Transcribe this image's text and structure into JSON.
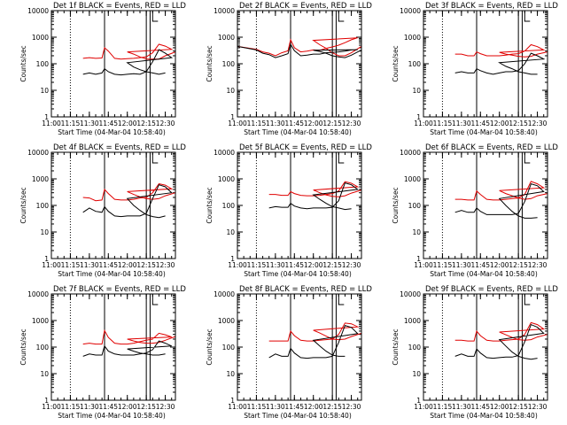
{
  "chart_data": {
    "type": "line",
    "y_scale": "log",
    "ylim": [
      1,
      10000
    ],
    "y_ticks": [
      1,
      10,
      100,
      1000,
      10000
    ],
    "y_tick_labels": [
      "1",
      "10",
      "100",
      "1000",
      "10000"
    ],
    "xlim": [
      "11:00",
      "12:38"
    ],
    "x_ticks": [
      "11:00",
      "11:15",
      "11:30",
      "11:45",
      "12:00",
      "12:15",
      "12:30"
    ],
    "ylabel": "Counts/sec",
    "xlabel": "Start Time (04-Mar-04 10:58:40)",
    "series_colors": {
      "Events": "#000000",
      "LLD": "#e00000"
    },
    "markers": {
      "dotted": "11:15",
      "solid": [
        "11:42",
        "12:15",
        "12:18"
      ],
      "flag": "12:20"
    },
    "x_sample_minutes": [
      11.0,
      11.15,
      11.2,
      11.25,
      11.3,
      11.35,
      11.4,
      11.42,
      11.45,
      11.5,
      11.55,
      11.6,
      11.65,
      11.7,
      11.75,
      11.8,
      11.85,
      11.9,
      11.95,
      12.0,
      12.05,
      12.1,
      12.15,
      12.2,
      12.25,
      12.3,
      12.38
    ],
    "panels": [
      {
        "title": "Det 1f  BLACK = Events, RED = LLD",
        "series": [
          {
            "name": "LLD",
            "values": [
              null,
              null,
              null,
              160,
              170,
              160,
              165,
              400,
              300,
              160,
              150,
              155,
              160,
              170,
              180,
              260,
              540,
              460,
              350,
              280,
              230,
              180,
              150,
              150,
              150,
              200,
              280
            ]
          },
          {
            "name": "Events",
            "values": [
              null,
              null,
              null,
              40,
              45,
              40,
              45,
              65,
              50,
              40,
              38,
              40,
              42,
              40,
              50,
              120,
              340,
              250,
              170,
              110,
              75,
              60,
              50,
              45,
              40,
              45,
              null
            ]
          }
        ]
      },
      {
        "title": "Det 2f  BLACK = Events, RED = LLD",
        "series": [
          {
            "name": "LLD",
            "values": [
              450,
              350,
              280,
              250,
              200,
              260,
              310,
              800,
              400,
              280,
              300,
              330,
              320,
              380,
              430,
              500,
              620,
              800,
              950,
              760,
              520,
              380,
              260,
              200,
              200,
              260,
              450
            ]
          },
          {
            "name": "Events",
            "values": [
              450,
              330,
              250,
              220,
              170,
              200,
              240,
              540,
              310,
              200,
              210,
              230,
              230,
              260,
              270,
              280,
              300,
              330,
              340,
              320,
              290,
              250,
              200,
              180,
              170,
              210,
              330
            ]
          }
        ]
      },
      {
        "title": "Det 3f  BLACK = Events, RED = LLD",
        "series": [
          {
            "name": "LLD",
            "values": [
              null,
              null,
              null,
              230,
              230,
              200,
              200,
              280,
              240,
              200,
              200,
              200,
              210,
              230,
              240,
              300,
              520,
              440,
              330,
              270,
              230,
              210,
              190,
              180,
              190,
              230,
              280
            ]
          },
          {
            "name": "Events",
            "values": [
              null,
              null,
              null,
              45,
              50,
              45,
              45,
              65,
              55,
              45,
              40,
              45,
              50,
              50,
              55,
              100,
              250,
              200,
              150,
              110,
              80,
              65,
              50,
              45,
              40,
              40,
              null
            ]
          }
        ]
      },
      {
        "title": "Det 4f  BLACK = Events, RED = LLD",
        "series": [
          {
            "name": "LLD",
            "values": [
              null,
              null,
              null,
              200,
              190,
              150,
              160,
              400,
              280,
              170,
              160,
              160,
              170,
              190,
              200,
              300,
              650,
              580,
              420,
              330,
              260,
              210,
              180,
              170,
              180,
              230,
              300
            ]
          },
          {
            "name": "Events",
            "values": [
              null,
              null,
              null,
              55,
              80,
              60,
              55,
              90,
              60,
              40,
              38,
              40,
              40,
              40,
              50,
              180,
              600,
              500,
              300,
              180,
              100,
              65,
              45,
              38,
              35,
              40,
              null
            ]
          }
        ]
      },
      {
        "title": "Det 5f  BLACK = Events, RED = LLD",
        "series": [
          {
            "name": "LLD",
            "values": [
              null,
              null,
              null,
              260,
              260,
              240,
              240,
              330,
              280,
              240,
              230,
              230,
              240,
              260,
              280,
              350,
              780,
              680,
              500,
              380,
              300,
              250,
              220,
              210,
              230,
              290,
              380
            ]
          },
          {
            "name": "Events",
            "values": [
              null,
              null,
              null,
              80,
              90,
              85,
              85,
              120,
              95,
              80,
              75,
              80,
              80,
              80,
              85,
              150,
              700,
              600,
              400,
              250,
              170,
              120,
              90,
              80,
              70,
              75,
              null
            ]
          }
        ]
      },
      {
        "title": "Det 6f  BLACK = Events, RED = LLD",
        "series": [
          {
            "name": "LLD",
            "values": [
              null,
              null,
              null,
              170,
              170,
              160,
              160,
              350,
              260,
              170,
              160,
              160,
              170,
              180,
              190,
              260,
              800,
              650,
              460,
              360,
              280,
              230,
              190,
              170,
              180,
              230,
              280
            ]
          },
          {
            "name": "Events",
            "values": [
              null,
              null,
              null,
              55,
              65,
              55,
              55,
              80,
              60,
              45,
              45,
              45,
              45,
              45,
              50,
              140,
              650,
              550,
              330,
              180,
              100,
              60,
              40,
              33,
              33,
              35,
              null
            ]
          }
        ]
      },
      {
        "title": "Det 7f  BLACK = Events, RED = LLD",
        "series": [
          {
            "name": "LLD",
            "values": [
              null,
              null,
              null,
              130,
              140,
              130,
              130,
              420,
              230,
              140,
              130,
              130,
              140,
              160,
              180,
              200,
              330,
              290,
              240,
              200,
              170,
              150,
              140,
              140,
              150,
              180,
              250
            ]
          },
          {
            "name": "Events",
            "values": [
              null,
              null,
              null,
              45,
              55,
              50,
              50,
              110,
              70,
              55,
              50,
              50,
              50,
              55,
              60,
              80,
              170,
              140,
              110,
              85,
              70,
              60,
              55,
              50,
              50,
              55,
              null
            ]
          }
        ]
      },
      {
        "title": "Det 8f  BLACK = Events, RED = LLD",
        "series": [
          {
            "name": "LLD",
            "values": [
              null,
              null,
              null,
              170,
              170,
              170,
              170,
              400,
              270,
              180,
              170,
              170,
              180,
              190,
              200,
              300,
              800,
              750,
              580,
              430,
              340,
              260,
              200,
              190,
              200,
              250,
              330
            ]
          },
          {
            "name": "Events",
            "values": [
              null,
              null,
              null,
              40,
              55,
              45,
              45,
              90,
              60,
              40,
              38,
              40,
              40,
              40,
              45,
              150,
              650,
              550,
              320,
              180,
              110,
              70,
              50,
              45,
              45,
              null,
              null
            ]
          }
        ]
      },
      {
        "title": "Det 9f  BLACK = Events, RED = LLD",
        "series": [
          {
            "name": "LLD",
            "values": [
              null,
              null,
              null,
              180,
              180,
              170,
              170,
              400,
              270,
              180,
              170,
              170,
              180,
              190,
              200,
              300,
              830,
              700,
              480,
              370,
              290,
              230,
              190,
              180,
              190,
              240,
              300
            ]
          },
          {
            "name": "Events",
            "values": [
              null,
              null,
              null,
              45,
              55,
              45,
              45,
              85,
              60,
              40,
              38,
              40,
              42,
              42,
              48,
              160,
              700,
              560,
              330,
              190,
              110,
              65,
              45,
              38,
              35,
              38,
              null
            ]
          }
        ]
      }
    ]
  }
}
